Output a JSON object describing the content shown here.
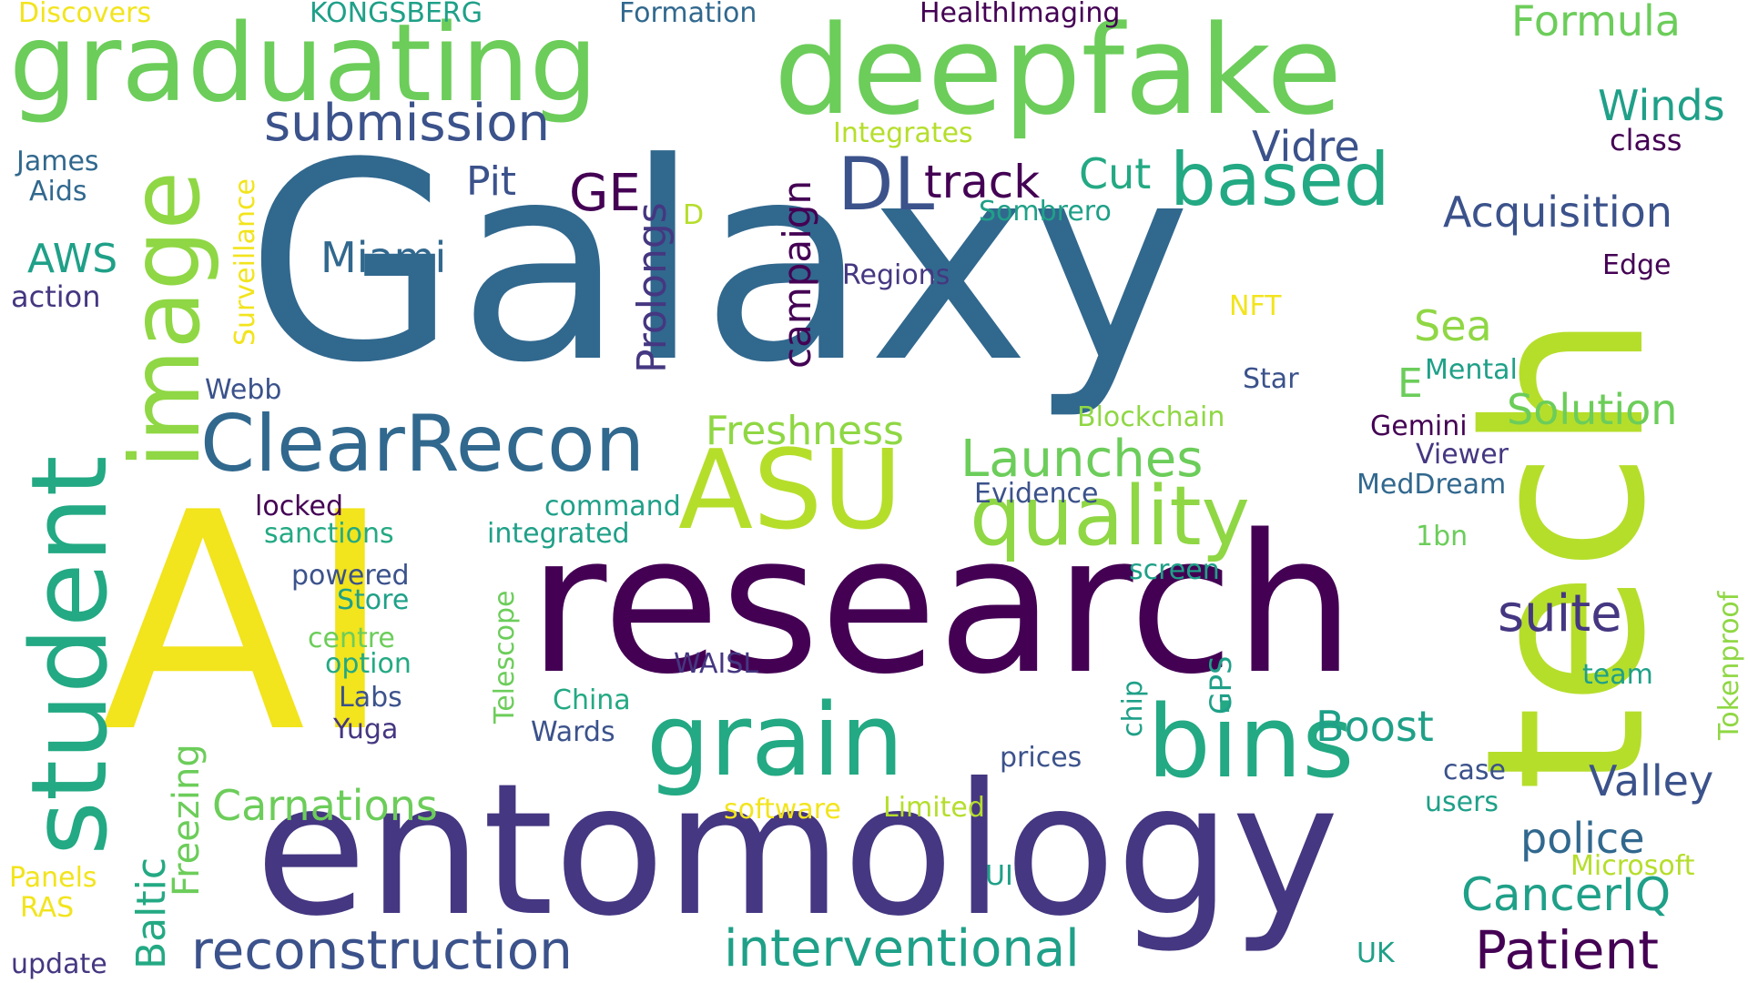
{
  "colors": {
    "yellow": "#f2e41d",
    "yellowgreen": "#b5de2b",
    "green": "#6ccd5a",
    "teal": "#1fa088",
    "seagreen": "#23a983",
    "blue": "#31688e",
    "slate": "#3b528b",
    "indigo": "#453781",
    "purple": "#440154",
    "lime": "#8fd744"
  },
  "words": [
    {
      "text": "Galaxy",
      "color": "blue"
    },
    {
      "text": "AI",
      "color": "yellow"
    },
    {
      "text": "research",
      "color": "purple"
    },
    {
      "text": "entomology",
      "color": "indigo"
    },
    {
      "text": "tech",
      "color": "yellowgreen"
    },
    {
      "text": "deepfake",
      "color": "green"
    },
    {
      "text": "graduating",
      "color": "green"
    },
    {
      "text": "student",
      "color": "seagreen"
    },
    {
      "text": "image",
      "color": "lime"
    },
    {
      "text": "ASU",
      "color": "yellowgreen"
    },
    {
      "text": "grain",
      "color": "seagreen"
    },
    {
      "text": "bins",
      "color": "seagreen"
    },
    {
      "text": "quality",
      "color": "lime"
    },
    {
      "text": "ClearRecon",
      "color": "blue"
    },
    {
      "text": "based",
      "color": "seagreen"
    },
    {
      "text": "reconstruction",
      "color": "slate"
    },
    {
      "text": "interventional",
      "color": "teal"
    },
    {
      "text": "submission",
      "color": "slate"
    },
    {
      "text": "Launches",
      "color": "green"
    },
    {
      "text": "suite",
      "color": "indigo"
    },
    {
      "text": "CancerIQ",
      "color": "teal"
    },
    {
      "text": "Patient",
      "color": "purple"
    },
    {
      "text": "DL",
      "color": "slate"
    },
    {
      "text": "GE",
      "color": "purple"
    },
    {
      "text": "track",
      "color": "purple"
    },
    {
      "text": "campaign",
      "color": "purple"
    },
    {
      "text": "Prolongs",
      "color": "indigo"
    },
    {
      "text": "Acquisition",
      "color": "slate"
    },
    {
      "text": "Formula",
      "color": "green"
    },
    {
      "text": "Winds",
      "color": "teal"
    },
    {
      "text": "class",
      "color": "purple"
    },
    {
      "text": "Vidre",
      "color": "slate"
    },
    {
      "text": "Cut",
      "color": "seagreen"
    },
    {
      "text": "Pit",
      "color": "slate"
    },
    {
      "text": "Miami",
      "color": "blue"
    },
    {
      "text": "Sea",
      "color": "lime"
    },
    {
      "text": "Solution",
      "color": "green"
    },
    {
      "text": "Freshness",
      "color": "lime"
    },
    {
      "text": "Carnations",
      "color": "green"
    },
    {
      "text": "Boost",
      "color": "teal"
    },
    {
      "text": "Valley",
      "color": "slate"
    },
    {
      "text": "police",
      "color": "blue"
    },
    {
      "text": "Freezing",
      "color": "green"
    },
    {
      "text": "Baltic",
      "color": "seagreen"
    },
    {
      "text": "AWS",
      "color": "teal"
    },
    {
      "text": "action",
      "color": "indigo"
    },
    {
      "text": "James",
      "color": "blue"
    },
    {
      "text": "Aids",
      "color": "blue"
    },
    {
      "text": "Discovers",
      "color": "yellow"
    },
    {
      "text": "KONGSBERG",
      "color": "teal"
    },
    {
      "text": "Formation",
      "color": "blue"
    },
    {
      "text": "HealthImaging",
      "color": "purple"
    },
    {
      "text": "Integrates",
      "color": "yellowgreen"
    },
    {
      "text": "Surveillance",
      "color": "yellow"
    },
    {
      "text": "Sombrero",
      "color": "teal"
    },
    {
      "text": "D",
      "color": "yellowgreen"
    },
    {
      "text": "Regions",
      "color": "indigo"
    },
    {
      "text": "Edge",
      "color": "purple"
    },
    {
      "text": "NFT",
      "color": "yellow"
    },
    {
      "text": "Star",
      "color": "slate"
    },
    {
      "text": "E",
      "color": "green"
    },
    {
      "text": "Mental",
      "color": "teal"
    },
    {
      "text": "Blockchain",
      "color": "lime"
    },
    {
      "text": "Gemini",
      "color": "purple"
    },
    {
      "text": "Viewer",
      "color": "indigo"
    },
    {
      "text": "Evidence",
      "color": "slate"
    },
    {
      "text": "MedDream",
      "color": "blue"
    },
    {
      "text": "1bn",
      "color": "green"
    },
    {
      "text": "Webb",
      "color": "slate"
    },
    {
      "text": "locked",
      "color": "purple"
    },
    {
      "text": "command",
      "color": "teal"
    },
    {
      "text": "sanctions",
      "color": "seagreen"
    },
    {
      "text": "integrated",
      "color": "teal"
    },
    {
      "text": "powered",
      "color": "slate"
    },
    {
      "text": "Store",
      "color": "teal"
    },
    {
      "text": "Telescope",
      "color": "green"
    },
    {
      "text": "screen",
      "color": "teal"
    },
    {
      "text": "Tokenproof",
      "color": "lime"
    },
    {
      "text": "team",
      "color": "teal"
    },
    {
      "text": "centre",
      "color": "green"
    },
    {
      "text": "option",
      "color": "seagreen"
    },
    {
      "text": "Labs",
      "color": "slate"
    },
    {
      "text": "Yuga",
      "color": "indigo"
    },
    {
      "text": "WAISL",
      "color": "indigo"
    },
    {
      "text": "China",
      "color": "seagreen"
    },
    {
      "text": "Wards",
      "color": "slate"
    },
    {
      "text": "GPS",
      "color": "teal"
    },
    {
      "text": "chip",
      "color": "teal"
    },
    {
      "text": "prices",
      "color": "slate"
    },
    {
      "text": "case",
      "color": "slate"
    },
    {
      "text": "users",
      "color": "teal"
    },
    {
      "text": "software",
      "color": "yellow"
    },
    {
      "text": "Limited",
      "color": "yellowgreen"
    },
    {
      "text": "Microsoft",
      "color": "yellowgreen"
    },
    {
      "text": "UI",
      "color": "teal"
    },
    {
      "text": "UK",
      "color": "teal"
    },
    {
      "text": "Panels",
      "color": "yellow"
    },
    {
      "text": "RAS",
      "color": "yellow"
    },
    {
      "text": "update",
      "color": "indigo"
    }
  ]
}
